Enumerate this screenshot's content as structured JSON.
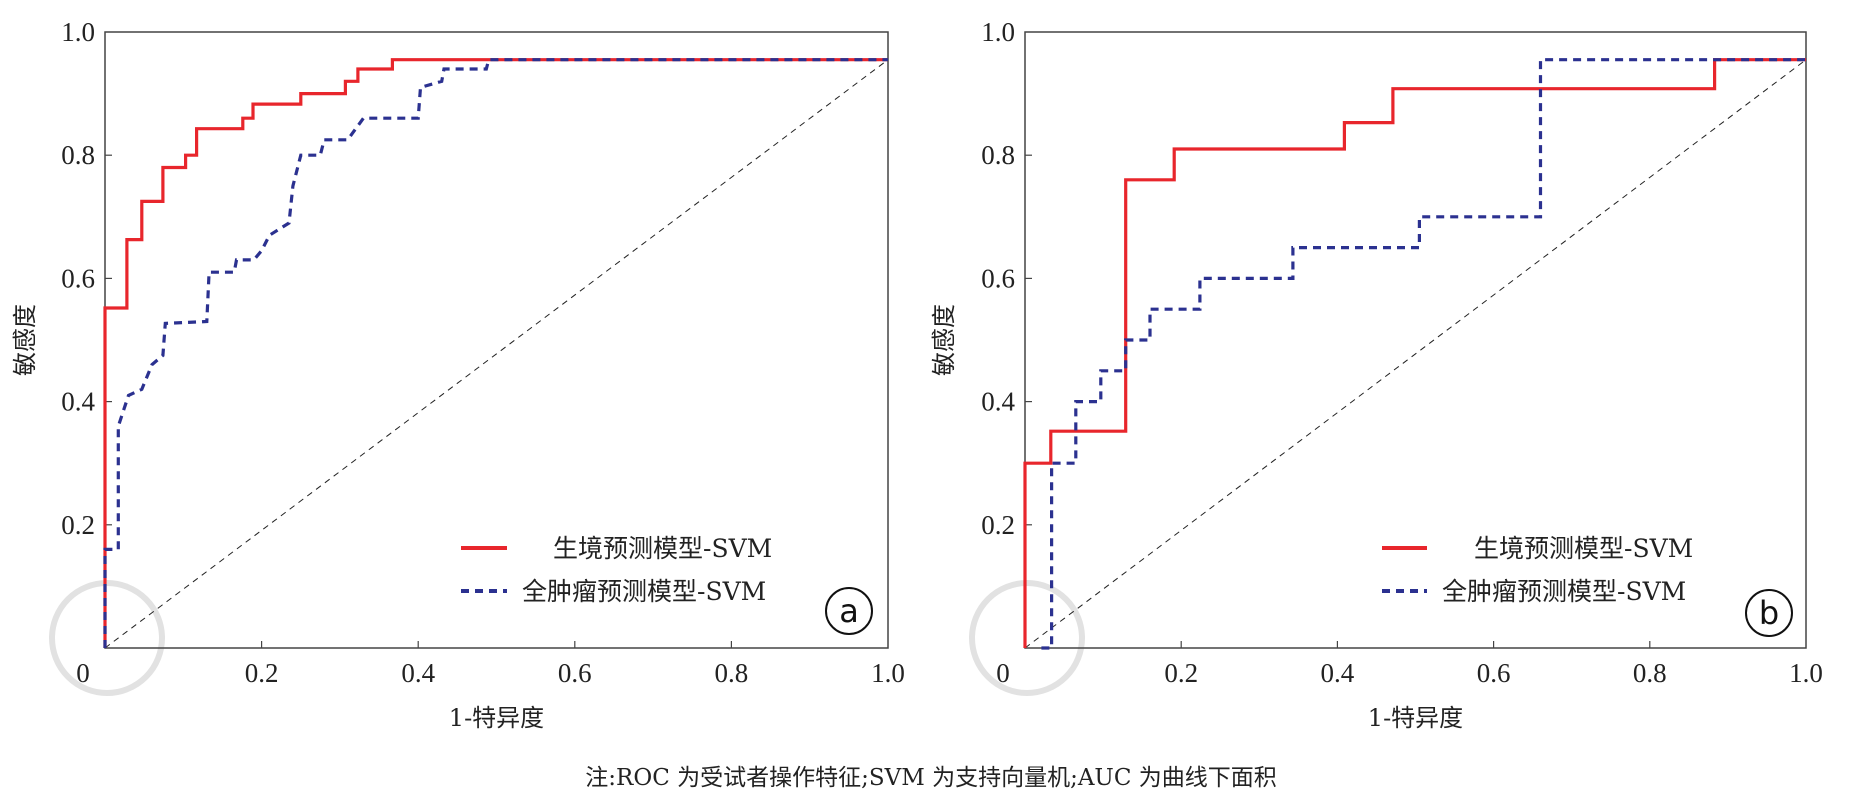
{
  "chart_data": [
    {
      "type": "line",
      "panel_label": "a",
      "xlabel": "1-特异度",
      "ylabel": "敏感度",
      "xlim": [
        0,
        1
      ],
      "ylim": [
        0,
        1
      ],
      "xticks": [
        "0",
        "0.2",
        "0.4",
        "0.6",
        "0.8",
        "1.0"
      ],
      "yticks": [
        "0.2",
        "0.4",
        "0.6",
        "0.8",
        "1.0"
      ],
      "xtick_values": [
        0,
        0.2,
        0.4,
        0.6,
        0.8,
        1.0
      ],
      "ytick_values": [
        0.2,
        0.4,
        0.6,
        0.8,
        1.0
      ],
      "legend_position": "bottom-right",
      "reference_line": {
        "x": [
          0,
          1
        ],
        "y": [
          0,
          0.955
        ]
      },
      "series": [
        {
          "name": "生境预测模型-SVM",
          "color": "#e8262c",
          "style": "solid",
          "x": [
            0,
            0,
            0.028,
            0.028,
            0.047,
            0.047,
            0.074,
            0.074,
            0.103,
            0.103,
            0.117,
            0.117,
            0.176,
            0.176,
            0.189,
            0.189,
            0.25,
            0.25,
            0.307,
            0.307,
            0.323,
            0.323,
            0.367,
            0.367,
            1.0
          ],
          "y": [
            0,
            0.552,
            0.552,
            0.663,
            0.663,
            0.725,
            0.725,
            0.78,
            0.78,
            0.8,
            0.8,
            0.843,
            0.843,
            0.86,
            0.86,
            0.883,
            0.883,
            0.9,
            0.9,
            0.92,
            0.92,
            0.94,
            0.94,
            0.955,
            0.955
          ]
        },
        {
          "name": "全肿瘤预测模型-SVM",
          "color": "#2b3190",
          "style": "dashed",
          "x": [
            0,
            0,
            0.017,
            0.017,
            0.03,
            0.047,
            0.06,
            0.074,
            0.077,
            0.13,
            0.133,
            0.165,
            0.168,
            0.19,
            0.2,
            0.21,
            0.235,
            0.24,
            0.25,
            0.275,
            0.28,
            0.31,
            0.33,
            0.4,
            0.403,
            0.43,
            0.433,
            0.487,
            0.49,
            1.0
          ],
          "y": [
            0,
            0.16,
            0.16,
            0.36,
            0.41,
            0.42,
            0.46,
            0.475,
            0.527,
            0.53,
            0.61,
            0.61,
            0.63,
            0.63,
            0.645,
            0.67,
            0.69,
            0.75,
            0.8,
            0.8,
            0.825,
            0.825,
            0.86,
            0.86,
            0.91,
            0.92,
            0.94,
            0.94,
            0.955,
            0.955
          ]
        }
      ]
    },
    {
      "type": "line",
      "panel_label": "b",
      "xlabel": "1-特异度",
      "ylabel": "敏感度",
      "xlim": [
        0,
        1
      ],
      "ylim": [
        0,
        1
      ],
      "xticks": [
        "0",
        "0.2",
        "0.4",
        "0.6",
        "0.8",
        "1.0"
      ],
      "yticks": [
        "0.2",
        "0.4",
        "0.6",
        "0.8",
        "1.0"
      ],
      "xtick_values": [
        0,
        0.2,
        0.4,
        0.6,
        0.8,
        1.0
      ],
      "ytick_values": [
        0.2,
        0.4,
        0.6,
        0.8,
        1.0
      ],
      "legend_position": "bottom-right",
      "reference_line": {
        "x": [
          0,
          1
        ],
        "y": [
          0,
          0.955
        ]
      },
      "series": [
        {
          "name": "生境预测模型-SVM",
          "color": "#e8262c",
          "style": "solid",
          "x": [
            0,
            0,
            0.033,
            0.033,
            0.129,
            0.129,
            0.191,
            0.191,
            0.409,
            0.409,
            0.471,
            0.471,
            0.883,
            0.883,
            1.0
          ],
          "y": [
            0,
            0.3,
            0.3,
            0.352,
            0.352,
            0.76,
            0.76,
            0.81,
            0.81,
            0.853,
            0.853,
            0.908,
            0.908,
            0.955,
            0.955
          ]
        },
        {
          "name": "全肿瘤预测模型-SVM",
          "color": "#2b3190",
          "style": "dashed",
          "x": [
            0.021,
            0.034,
            0.034,
            0.065,
            0.065,
            0.097,
            0.097,
            0.129,
            0.129,
            0.16,
            0.16,
            0.224,
            0.224,
            0.343,
            0.343,
            0.505,
            0.505,
            0.66,
            0.66,
            1.0
          ],
          "y": [
            0,
            0,
            0.3,
            0.3,
            0.4,
            0.4,
            0.45,
            0.45,
            0.5,
            0.5,
            0.55,
            0.55,
            0.6,
            0.6,
            0.65,
            0.65,
            0.7,
            0.7,
            0.955,
            0.955
          ]
        }
      ]
    }
  ],
  "caption": "注:ROC 为受试者操作特征;SVM 为支持向量机;AUC 为曲线下面积"
}
